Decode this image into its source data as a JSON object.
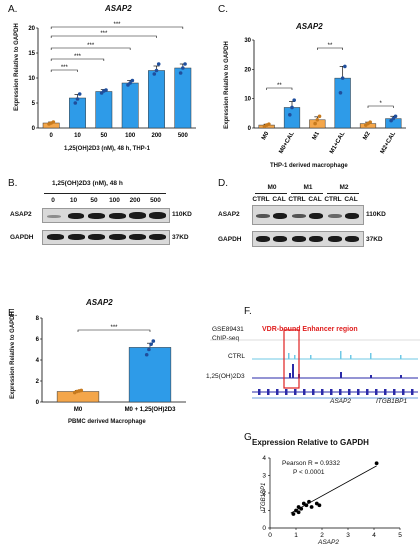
{
  "panels": {
    "A": {
      "letter": "A.",
      "gene": "ASAP2",
      "ylabel": "Expression Relative to GAPDH",
      "xcaption": "1,25(OH)2D3 (nM), 48 h, THP-1",
      "significance": [
        "***",
        "***",
        "***",
        "***",
        "***"
      ]
    },
    "B": {
      "letter": "B.",
      "treatment": "1,25(OH)2D3 (nM), 48 h",
      "lanes": [
        "0",
        "10",
        "50",
        "100",
        "200",
        "500"
      ],
      "rows": [
        "ASAP2",
        "GAPDH"
      ],
      "sizes": [
        "110KD",
        "37KD"
      ]
    },
    "C": {
      "letter": "C.",
      "gene": "ASAP2",
      "ylabel": "Expression Relative to GAPDH",
      "xcaption": "THP-1 derived macrophage",
      "significance": [
        "**",
        "**",
        "*"
      ]
    },
    "D": {
      "letter": "D.",
      "groups": [
        "M0",
        "M1",
        "M2"
      ],
      "lanes": [
        "CTRL",
        "CAL",
        "CTRL",
        "CAL",
        "CTRL",
        "CAL"
      ],
      "rows": [
        "ASAP2",
        "GAPDH"
      ],
      "sizes": [
        "110KD",
        "37KD"
      ]
    },
    "E": {
      "letter": "E.",
      "gene": "ASAP2",
      "ylabel": "Expression Relative to GAPDH",
      "xcaption": "PBMC derived Macrophage",
      "significance": [
        "***"
      ]
    },
    "F": {
      "letter": "F.",
      "dataset": "GSE89431",
      "assay": "ChIP-seq",
      "highlight": "VDR-bound Enhancer region",
      "tracks": [
        "CTRL",
        "1,25(OH)2D3"
      ],
      "genes": [
        "ASAP2",
        "ITGB1BP1"
      ]
    },
    "G": {
      "letter": "G.",
      "stats": [
        "Pearson R = 0.9332",
        "P < 0.0001"
      ]
    }
  },
  "colors": {
    "orange": "#F4A64A",
    "blue": "#2E9BE8",
    "darkblue": "#1F4E9C",
    "cyan": "#6FC8E6",
    "red": "#E02020",
    "navy": "#2A2AA8"
  },
  "chart_data": [
    {
      "id": "A",
      "type": "bar",
      "title": "ASAP2",
      "xlabel": "1,25(OH)2D3 (nM), 48 h, THP-1",
      "ylabel": "Expression Relative to GAPDH",
      "categories": [
        "0",
        "10",
        "50",
        "100",
        "200",
        "500"
      ],
      "values": [
        1.0,
        6.0,
        7.3,
        9.0,
        11.5,
        12.0
      ],
      "errors": [
        0.2,
        0.7,
        0.4,
        0.5,
        0.9,
        0.8
      ],
      "points": [
        [
          0.8,
          1.0,
          1.2
        ],
        [
          5.0,
          5.8,
          6.8
        ],
        [
          7.0,
          7.4,
          7.6
        ],
        [
          8.6,
          9.0,
          9.5
        ],
        [
          10.8,
          11.5,
          12.8
        ],
        [
          11.0,
          12.0,
          12.8
        ]
      ],
      "ylim": [
        0,
        20
      ],
      "yticks": [
        0,
        5,
        10,
        15,
        20
      ]
    },
    {
      "id": "C",
      "type": "bar",
      "title": "ASAP2",
      "xlabel": "THP-1 derived macrophage",
      "ylabel": "Expression Relative to GAPDH",
      "categories": [
        "M0",
        "M0+CAL",
        "M1",
        "M1+CAL",
        "M2",
        "M2+CAL"
      ],
      "values": [
        1.0,
        7.0,
        2.8,
        17.0,
        1.5,
        3.2
      ],
      "errors": [
        0.3,
        2.0,
        1.0,
        4.0,
        0.5,
        0.8
      ],
      "points": [
        [
          0.6,
          1.0,
          1.3
        ],
        [
          4.5,
          7.0,
          9.5
        ],
        [
          1.5,
          2.8,
          4.0
        ],
        [
          12.0,
          17.0,
          21.0
        ],
        [
          1.0,
          1.5,
          2.0
        ],
        [
          2.5,
          3.2,
          4.0
        ]
      ],
      "ylim": [
        0,
        30
      ],
      "yticks": [
        0,
        10,
        20,
        30
      ]
    },
    {
      "id": "E",
      "type": "bar",
      "title": "ASAP2",
      "xlabel": "PBMC derived Macrophage",
      "ylabel": "Expression Relative to GAPDH",
      "categories": [
        "M0",
        "M0 + 1,25(OH)2D3"
      ],
      "values": [
        1.0,
        5.2
      ],
      "errors": [
        0.1,
        0.4
      ],
      "points": [
        [
          0.9,
          1.0,
          1.05,
          1.1
        ],
        [
          4.5,
          5.0,
          5.5,
          5.8
        ]
      ],
      "ylim": [
        0,
        8
      ],
      "yticks": [
        0,
        2,
        4,
        6,
        8
      ]
    },
    {
      "id": "G",
      "type": "scatter",
      "title": "Expression Relative to GAPDH",
      "xlabel": "ASAP2",
      "ylabel": "ITGB1BP1",
      "x": [
        0.9,
        1.0,
        1.1,
        1.1,
        1.2,
        1.3,
        1.4,
        1.5,
        1.6,
        1.8,
        1.9,
        4.1
      ],
      "y": [
        0.8,
        1.0,
        0.9,
        1.2,
        1.1,
        1.4,
        1.3,
        1.5,
        1.2,
        1.4,
        1.3,
        3.7
      ],
      "fit": [
        [
          0.8,
          0.85
        ],
        [
          4.1,
          3.55
        ]
      ],
      "xlim": [
        0,
        5
      ],
      "ylim": [
        0,
        4
      ],
      "xticks": [
        0,
        1,
        2,
        3,
        4,
        5
      ],
      "yticks": [
        0,
        1,
        2,
        3,
        4
      ]
    }
  ]
}
